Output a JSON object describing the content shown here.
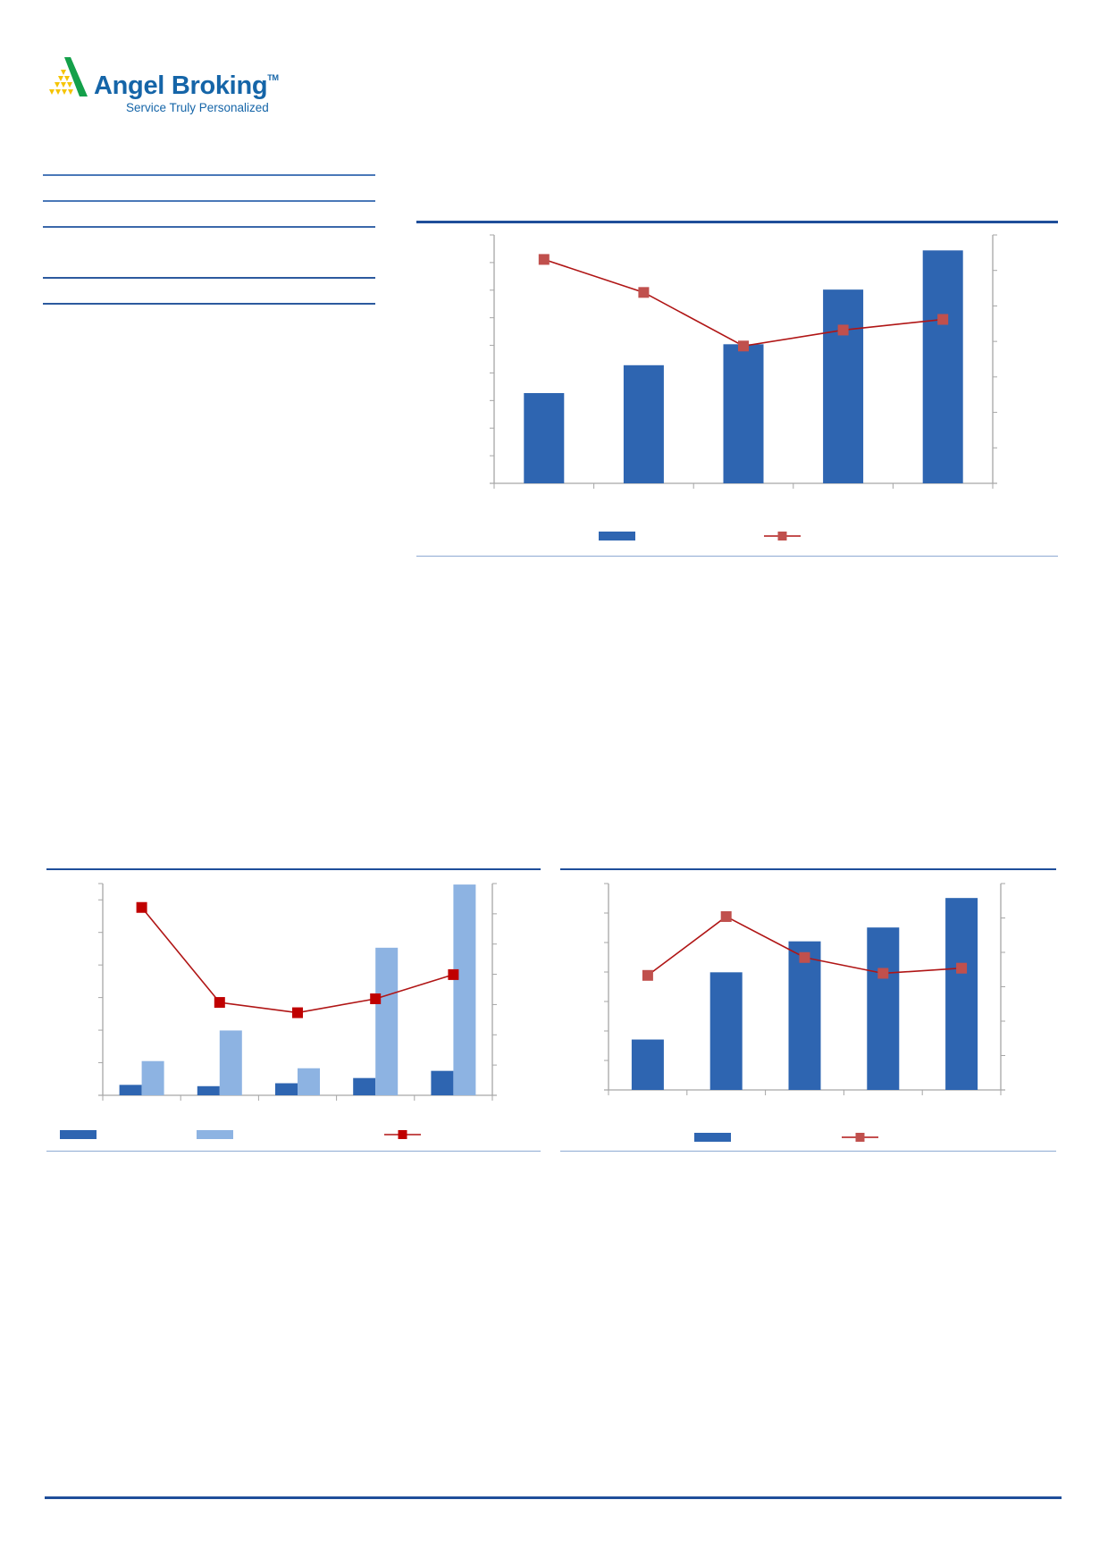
{
  "header": {
    "logo": {
      "brand": "Angel Broking",
      "trademark": "TM",
      "tagline": "Service Truly Personalized"
    }
  },
  "colors": {
    "brand_blue": "#1565a8",
    "rule_blue": "#1f4e9a",
    "bar_dark": "#2e65b1",
    "bar_light": "#8db3e2",
    "line_red": "#b01515",
    "marker_red": "#c0504d",
    "marker_red_bright": "#c00000",
    "axis_gray": "#a6a6a6",
    "logo_green": "#14a04a",
    "logo_yellow": "#f5c400"
  },
  "chart_data": [
    {
      "type": "bar+line",
      "title": "",
      "grid": false,
      "legend_placement": "bottom",
      "ylim_left": [
        0,
        9
      ],
      "ylim_right": [
        0,
        7
      ],
      "left_ticks": 9,
      "right_ticks": 7,
      "category_count": 5,
      "series": [
        {
          "kind": "bar",
          "axis": "left",
          "color": "#2e65b1",
          "values": [
            3.27,
            4.28,
            5.04,
            7.02,
            8.44
          ]
        },
        {
          "kind": "line",
          "axis": "right",
          "color": "#b01515",
          "marker_color": "#c0504d",
          "values": [
            6.31,
            5.38,
            3.87,
            4.32,
            4.62
          ]
        }
      ]
    },
    {
      "type": "bar+line",
      "title": "",
      "grid": false,
      "legend_placement": "bottom",
      "ylim_left": [
        0,
        6.5
      ],
      "ylim_right": [
        0,
        7
      ],
      "left_ticks": 6,
      "right_ticks": 7,
      "category_count": 5,
      "series": [
        {
          "kind": "bar",
          "axis": "left",
          "color": "#2e65b1",
          "values": [
            0.32,
            0.28,
            0.37,
            0.53,
            0.75
          ]
        },
        {
          "kind": "bar",
          "axis": "left",
          "color": "#8db3e2",
          "values": [
            1.05,
            1.99,
            0.83,
            4.53,
            6.47
          ]
        },
        {
          "kind": "line",
          "axis": "right",
          "color": "#b01515",
          "marker_color": "#c00000",
          "values": [
            6.21,
            3.07,
            2.73,
            3.19,
            3.99
          ]
        }
      ]
    },
    {
      "type": "bar+line",
      "title": "",
      "grid": false,
      "legend_placement": "bottom",
      "ylim_left": [
        0,
        7
      ],
      "ylim_right": [
        0,
        6
      ],
      "left_ticks": 7,
      "right_ticks": 6,
      "category_count": 5,
      "series": [
        {
          "kind": "bar",
          "axis": "left",
          "color": "#2e65b1",
          "values": [
            1.71,
            3.99,
            5.04,
            5.51,
            6.51
          ]
        },
        {
          "kind": "line",
          "axis": "right",
          "color": "#b01515",
          "marker_color": "#c0504d",
          "values": [
            3.33,
            5.04,
            3.85,
            3.39,
            3.54
          ]
        }
      ]
    }
  ]
}
